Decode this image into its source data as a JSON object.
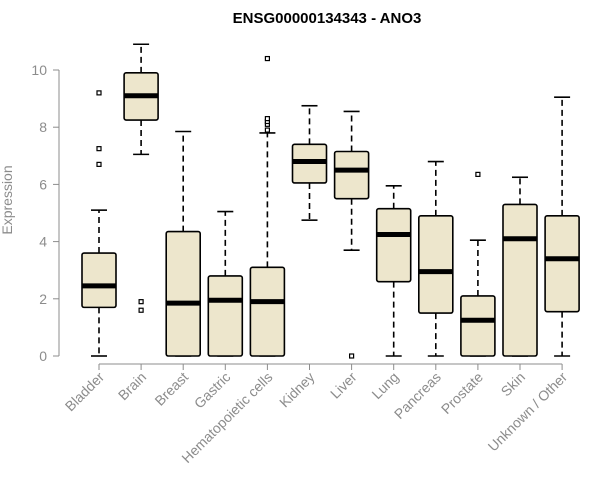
{
  "chart_data": {
    "type": "boxplot",
    "title": "ENSG00000134343 - ANO3",
    "ylabel": "Expression",
    "xlabel": "",
    "ylim": [
      0,
      11
    ],
    "yticks": [
      0,
      2,
      4,
      6,
      8,
      10
    ],
    "categories": [
      "Bladder",
      "Brain",
      "Breast",
      "Gastric",
      "Hematopoietic cells",
      "Kidney",
      "Liver",
      "Lung",
      "Pancreas",
      "Prostate",
      "Skin",
      "Unknown / Other"
    ],
    "boxes": [
      {
        "category": "Bladder",
        "min": 0,
        "q1": 1.7,
        "median": 2.45,
        "q3": 3.6,
        "max": 5.1,
        "outliers": [
          6.7,
          7.25,
          9.2
        ]
      },
      {
        "category": "Brain",
        "min": 7.05,
        "q1": 8.25,
        "median": 9.1,
        "q3": 9.9,
        "max": 10.9,
        "outliers": [
          1.6,
          1.9
        ]
      },
      {
        "category": "Breast",
        "min": 0,
        "q1": 0,
        "median": 1.85,
        "q3": 4.35,
        "max": 7.85,
        "outliers": []
      },
      {
        "category": "Gastric",
        "min": 0,
        "q1": 0,
        "median": 1.95,
        "q3": 2.8,
        "max": 5.05,
        "outliers": []
      },
      {
        "category": "Hematopoietic cells",
        "min": 0,
        "q1": 0,
        "median": 1.9,
        "q3": 3.1,
        "max": 7.8,
        "outliers": [
          7.9,
          8.1,
          8.2,
          8.3,
          10.4
        ]
      },
      {
        "category": "Kidney",
        "min": 4.75,
        "q1": 6.05,
        "median": 6.8,
        "q3": 7.4,
        "max": 8.75,
        "outliers": []
      },
      {
        "category": "Liver",
        "min": 3.7,
        "q1": 5.5,
        "median": 6.5,
        "q3": 7.15,
        "max": 8.55,
        "outliers": [
          0
        ]
      },
      {
        "category": "Lung",
        "min": 0,
        "q1": 2.6,
        "median": 4.25,
        "q3": 5.15,
        "max": 5.95,
        "outliers": []
      },
      {
        "category": "Pancreas",
        "min": 0,
        "q1": 1.5,
        "median": 2.95,
        "q3": 4.9,
        "max": 6.8,
        "outliers": []
      },
      {
        "category": "Prostate",
        "min": 0,
        "q1": 0,
        "median": 1.25,
        "q3": 2.1,
        "max": 4.05,
        "outliers": [
          6.35
        ]
      },
      {
        "category": "Skin",
        "min": 0,
        "q1": 0,
        "median": 4.1,
        "q3": 5.3,
        "max": 6.25,
        "outliers": []
      },
      {
        "category": "Unknown / Other",
        "min": 0,
        "q1": 1.55,
        "median": 3.4,
        "q3": 4.9,
        "max": 9.05,
        "outliers": []
      }
    ]
  }
}
